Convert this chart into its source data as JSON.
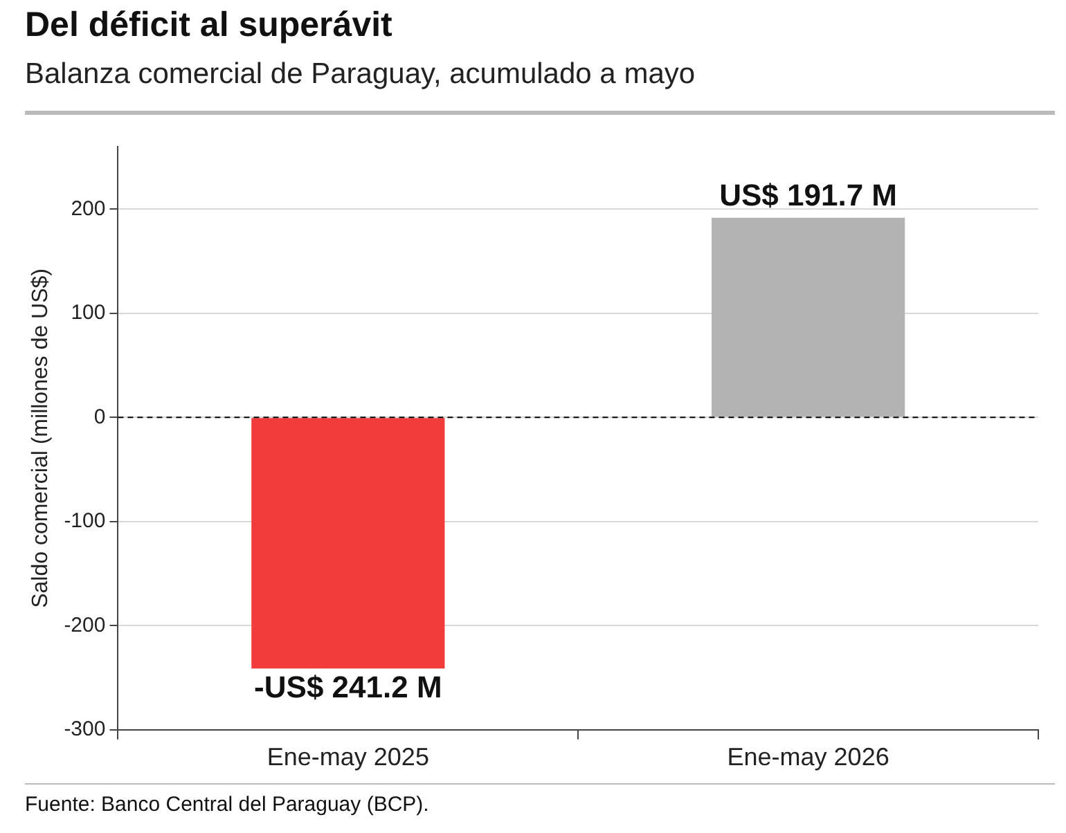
{
  "chart_data": {
    "type": "bar",
    "title": "Del déficit al superávit",
    "subtitle": "Balanza comercial de Paraguay, acumulado a mayo",
    "ylabel": "Saldo comercial (millones de US$)",
    "categories": [
      "Ene-may 2025",
      "Ene-may 2026"
    ],
    "values": [
      -241.2,
      191.7
    ],
    "colors": [
      "#f23b3b",
      "#b3b3b3"
    ],
    "value_labels": [
      "-US$ 241.2 M",
      "US$ 191.7 M"
    ],
    "ylim": [
      -300,
      260
    ],
    "yticks": [
      -300,
      -200,
      -100,
      0,
      100,
      200
    ],
    "grid": "y",
    "legend": false,
    "ref_lines": [
      {
        "axis": "y",
        "value": 0,
        "color": "#000000",
        "line_style": "dashed"
      }
    ],
    "annotations": [
      "Fuente: Banco Central del Paraguay (BCP)."
    ]
  }
}
